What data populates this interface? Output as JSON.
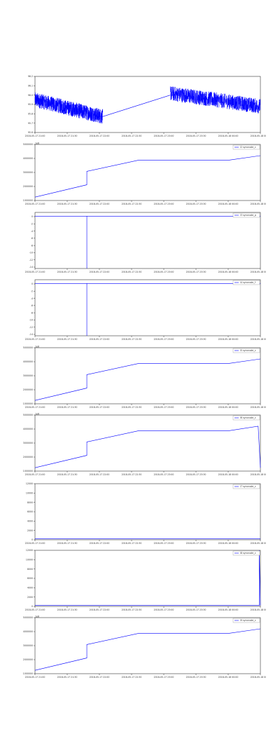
{
  "chart_data": [
    {
      "type": "line",
      "title": "",
      "xlabel": "",
      "ylabel": "",
      "ylim": [
        95.6,
        96.2
      ],
      "yticks": [
        "95.6",
        "95.7",
        "95.8",
        "95.9",
        "96.0",
        "96.1",
        "96.2"
      ],
      "xticks": [
        "2018-05-17 21:00",
        "2018-05-17 21:30",
        "2018-05-17 22:00",
        "2018-05-17 22:30",
        "2018-05-17 23:00",
        "2018-05-17 23:30",
        "2018-05-18 00:00",
        "2018-05-18 00:30"
      ],
      "legend": "",
      "offset_label": "",
      "color": "#0000ff",
      "noisy": true,
      "series": [
        {
          "x": [
            0,
            0.3
          ],
          "y": [
            95.95,
            95.77
          ]
        },
        {
          "x": [
            0.3,
            0.6
          ],
          "y": [
            95.77,
            96.0
          ]
        },
        {
          "x": [
            0.6,
            1.0
          ],
          "y": [
            96.02,
            95.88
          ]
        }
      ],
      "gap_segment": {
        "x": [
          0.3,
          0.6
        ],
        "y": [
          95.77,
          96.0
        ]
      }
    },
    {
      "type": "line",
      "title": "",
      "xlabel": "",
      "ylabel": "",
      "ylim": [
        0,
        5
      ],
      "yticks": [
        "1000000",
        "2000000",
        "3000000",
        "4000000",
        "5000000"
      ],
      "xticks": [
        "2018-05-17 21:00",
        "2018-05-17 21:30",
        "2018-05-17 22:00",
        "2018-05-17 22:30",
        "2018-05-17 23:00",
        "2018-05-17 23:30",
        "2018-05-18 00:00",
        "2018-05-18 00:30"
      ],
      "legend": "I2 syncnode_c",
      "offset_label": "1e6",
      "color": "#0000ff",
      "noisy": false,
      "series": [
        {
          "x": [
            0,
            0.23,
            0.23,
            0.46,
            0.86,
            1.0
          ],
          "y": [
            0.3,
            1.4,
            2.6,
            3.6,
            3.6,
            4.0
          ]
        }
      ]
    },
    {
      "type": "line",
      "title": "",
      "xlabel": "",
      "ylabel": "",
      "ylim": [
        -14,
        1
      ],
      "yticks": [
        "0",
        "-2",
        "-4",
        "-6",
        "-8",
        "-10",
        "-12",
        "-14"
      ],
      "xticks": [
        "2018-05-17 21:00",
        "2018-05-17 21:30",
        "2018-05-17 22:00",
        "2018-05-17 22:30",
        "2018-05-17 23:00",
        "2018-05-17 23:30",
        "2018-05-18 00:00",
        "2018-05-18 00:30"
      ],
      "legend": "I3 syncnode_p",
      "offset_label": "",
      "color": "#0000ff",
      "noisy": false,
      "series": [
        {
          "x": [
            0,
            0.23,
            0.23,
            0.23,
            1.0
          ],
          "y": [
            0,
            0,
            -14,
            0,
            0
          ]
        }
      ]
    },
    {
      "type": "line",
      "title": "",
      "xlabel": "",
      "ylabel": "",
      "ylim": [
        -14,
        1
      ],
      "yticks": [
        "0",
        "-2",
        "-4",
        "-6",
        "-8",
        "-10",
        "-12",
        "-14"
      ],
      "xticks": [
        "2018-05-17 21:00",
        "2018-05-17 21:30",
        "2018-05-17 22:00",
        "2018-05-17 22:30",
        "2018-05-17 23:00",
        "2018-05-17 23:30",
        "2018-05-18 00:00",
        "2018-05-18 00:30"
      ],
      "legend": "I4 syncnode_f",
      "offset_label": "",
      "color": "#0000ff",
      "noisy": false,
      "series": [
        {
          "x": [
            0,
            0.23,
            0.23,
            0.23,
            1.0
          ],
          "y": [
            0,
            0,
            -14,
            0,
            0
          ]
        }
      ]
    },
    {
      "type": "line",
      "title": "",
      "xlabel": "",
      "ylabel": "",
      "ylim": [
        0,
        5
      ],
      "yticks": [
        "1000000",
        "2000000",
        "3000000",
        "4000000",
        "5000000"
      ],
      "xticks": [
        "2018-05-17 21:00",
        "2018-05-17 21:30",
        "2018-05-17 22:00",
        "2018-05-17 22:30",
        "2018-05-17 23:00",
        "2018-05-17 23:30",
        "2018-05-18 00:00",
        "2018-05-18 00:30"
      ],
      "legend": "I5 syncnode_c",
      "offset_label": "1e6",
      "color": "#0000ff",
      "noisy": false,
      "series": [
        {
          "x": [
            0,
            0.23,
            0.23,
            0.46,
            0.86,
            1.0
          ],
          "y": [
            0.3,
            1.4,
            2.6,
            3.6,
            3.6,
            4.0
          ]
        }
      ]
    },
    {
      "type": "line",
      "title": "",
      "xlabel": "",
      "ylabel": "",
      "ylim": [
        0,
        5
      ],
      "yticks": [
        "1000000",
        "2000000",
        "3000000",
        "4000000",
        "5000000"
      ],
      "xticks": [
        "2018-05-17 21:00",
        "2018-05-17 21:30",
        "2018-05-17 22:00",
        "2018-05-17 22:30",
        "2018-05-17 23:00",
        "2018-05-17 23:30",
        "2018-05-18 00:00",
        "2018-05-18 00:30"
      ],
      "legend": "I6 syncnode_c",
      "offset_label": "1e6",
      "color": "#0000ff",
      "noisy": false,
      "series": [
        {
          "x": [
            0,
            0.23,
            0.23,
            0.46,
            0.86,
            0.99,
            1.0
          ],
          "y": [
            0.3,
            1.4,
            2.6,
            3.6,
            3.6,
            4.0,
            0.3
          ]
        }
      ]
    },
    {
      "type": "line",
      "title": "",
      "xlabel": "",
      "ylabel": "",
      "ylim": [
        0,
        12000
      ],
      "yticks": [
        "0",
        "2000",
        "4000",
        "6000",
        "8000",
        "10000",
        "12000"
      ],
      "xticks": [
        "2018-05-17 21:00",
        "2018-05-17 21:30",
        "2018-05-17 22:00",
        "2018-05-17 22:30",
        "2018-05-17 23:00",
        "2018-05-17 23:30",
        "2018-05-18 00:00",
        "2018-05-18 00:30"
      ],
      "legend": "I7 syncnode_c",
      "offset_label": "",
      "color": "#0000ff",
      "noisy": false,
      "series": [
        {
          "x": [
            0,
            1.0
          ],
          "y": [
            200,
            200
          ]
        }
      ]
    },
    {
      "type": "line",
      "title": "",
      "xlabel": "",
      "ylabel": "",
      "ylim": [
        0,
        12000
      ],
      "yticks": [
        "0",
        "2000",
        "4000",
        "6000",
        "8000",
        "10000",
        "12000"
      ],
      "xticks": [
        "2018-05-17 21:00",
        "2018-05-17 21:30",
        "2018-05-17 22:00",
        "2018-05-17 22:30",
        "2018-05-17 23:00",
        "2018-05-17 23:30",
        "2018-05-18 00:00",
        "2018-05-18 00:30"
      ],
      "legend": "I8 syncnode_c",
      "offset_label": "",
      "color": "#0000ff",
      "noisy": false,
      "series": [
        {
          "x": [
            0,
            0.995,
            0.995,
            1.0
          ],
          "y": [
            200,
            200,
            12000,
            200
          ]
        }
      ]
    },
    {
      "type": "line",
      "title": "",
      "xlabel": "",
      "ylabel": "",
      "ylim": [
        0,
        5
      ],
      "yticks": [
        "1000000",
        "2000000",
        "3000000",
        "4000000",
        "5000000"
      ],
      "xticks": [
        "2018-05-17 21:00",
        "2018-05-17 21:30",
        "2018-05-17 22:00",
        "2018-05-17 22:30",
        "2018-05-17 23:00",
        "2018-05-17 23:30",
        "2018-05-18 00:00",
        "2018-05-18 00:30"
      ],
      "legend": "I9 syncnode_c",
      "offset_label": "1e6",
      "color": "#0000ff",
      "noisy": false,
      "series": [
        {
          "x": [
            0,
            0.23,
            0.23,
            0.46,
            0.86,
            1.0
          ],
          "y": [
            0.3,
            1.4,
            2.6,
            3.6,
            3.6,
            4.0
          ]
        }
      ]
    }
  ]
}
